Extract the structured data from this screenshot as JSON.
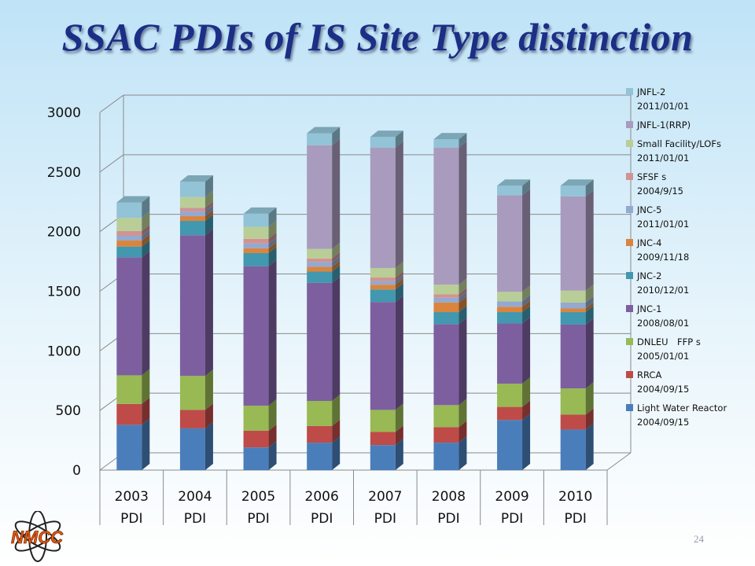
{
  "slide": {
    "title": "SSAC PDIs of IS Site Type distinction",
    "page_number": "24",
    "logo_text": "NMCC"
  },
  "chart_data": {
    "type": "bar",
    "stacked": true,
    "three_d": true,
    "categories": [
      "2003\nPDI",
      "2004\nPDI",
      "2005\nPDI",
      "2006\nPDI",
      "2007\nPDI",
      "2008\nPDI",
      "2009\nPDI",
      "2010\nPDI"
    ],
    "ylim": [
      0,
      3000
    ],
    "yticks": [
      0,
      500,
      1000,
      1500,
      2000,
      2500,
      3000
    ],
    "grid": true,
    "legend_position": "right",
    "series": [
      {
        "name": "Light Water Reactor",
        "date": "2004/09/15",
        "color": "#4a7ebb",
        "values": [
          380,
          350,
          190,
          230,
          210,
          230,
          420,
          340
        ]
      },
      {
        "name": "RRCA",
        "date": "2004/09/15",
        "color": "#be4b48",
        "values": [
          175,
          155,
          140,
          140,
          110,
          130,
          110,
          125
        ]
      },
      {
        "name": "DNLEU　FFP s",
        "date": "2005/01/01",
        "color": "#98b954",
        "values": [
          240,
          285,
          210,
          210,
          185,
          185,
          195,
          220
        ]
      },
      {
        "name": "JNC-1",
        "date": "2008/08/01",
        "color": "#7d5fa0",
        "values": [
          990,
          1180,
          1170,
          990,
          905,
          680,
          505,
          535
        ]
      },
      {
        "name": "JNC-2",
        "date": "2010/12/01",
        "color": "#4198af",
        "values": [
          90,
          120,
          110,
          95,
          105,
          100,
          95,
          105
        ]
      },
      {
        "name": "JNC-4",
        "date": "2009/11/18",
        "color": "#db843d",
        "values": [
          50,
          40,
          40,
          40,
          40,
          80,
          45,
          30
        ]
      },
      {
        "name": "JNC-5",
        "date": "2011/01/01",
        "color": "#93a9cf",
        "values": [
          40,
          40,
          40,
          40,
          30,
          40,
          45,
          50
        ]
      },
      {
        "name": "SFSF s",
        "date": "2004/9/15",
        "color": "#d19392",
        "values": [
          40,
          30,
          40,
          30,
          30,
          30,
          0,
          0
        ]
      },
      {
        "name": "Small Facility/LOFs",
        "date": "2011/01/01",
        "color": "#b9cd96",
        "values": [
          110,
          90,
          100,
          80,
          80,
          80,
          80,
          100
        ]
      },
      {
        "name": "JNFL-1(RRP)",
        "date": "",
        "color": "#a99bbd",
        "values": [
          0,
          0,
          0,
          870,
          1010,
          1150,
          810,
          790
        ]
      },
      {
        "name": "JNFL-2",
        "date": "2011/01/01",
        "color": "#92c3d6",
        "values": [
          130,
          130,
          110,
          100,
          90,
          70,
          80,
          90
        ]
      }
    ]
  }
}
